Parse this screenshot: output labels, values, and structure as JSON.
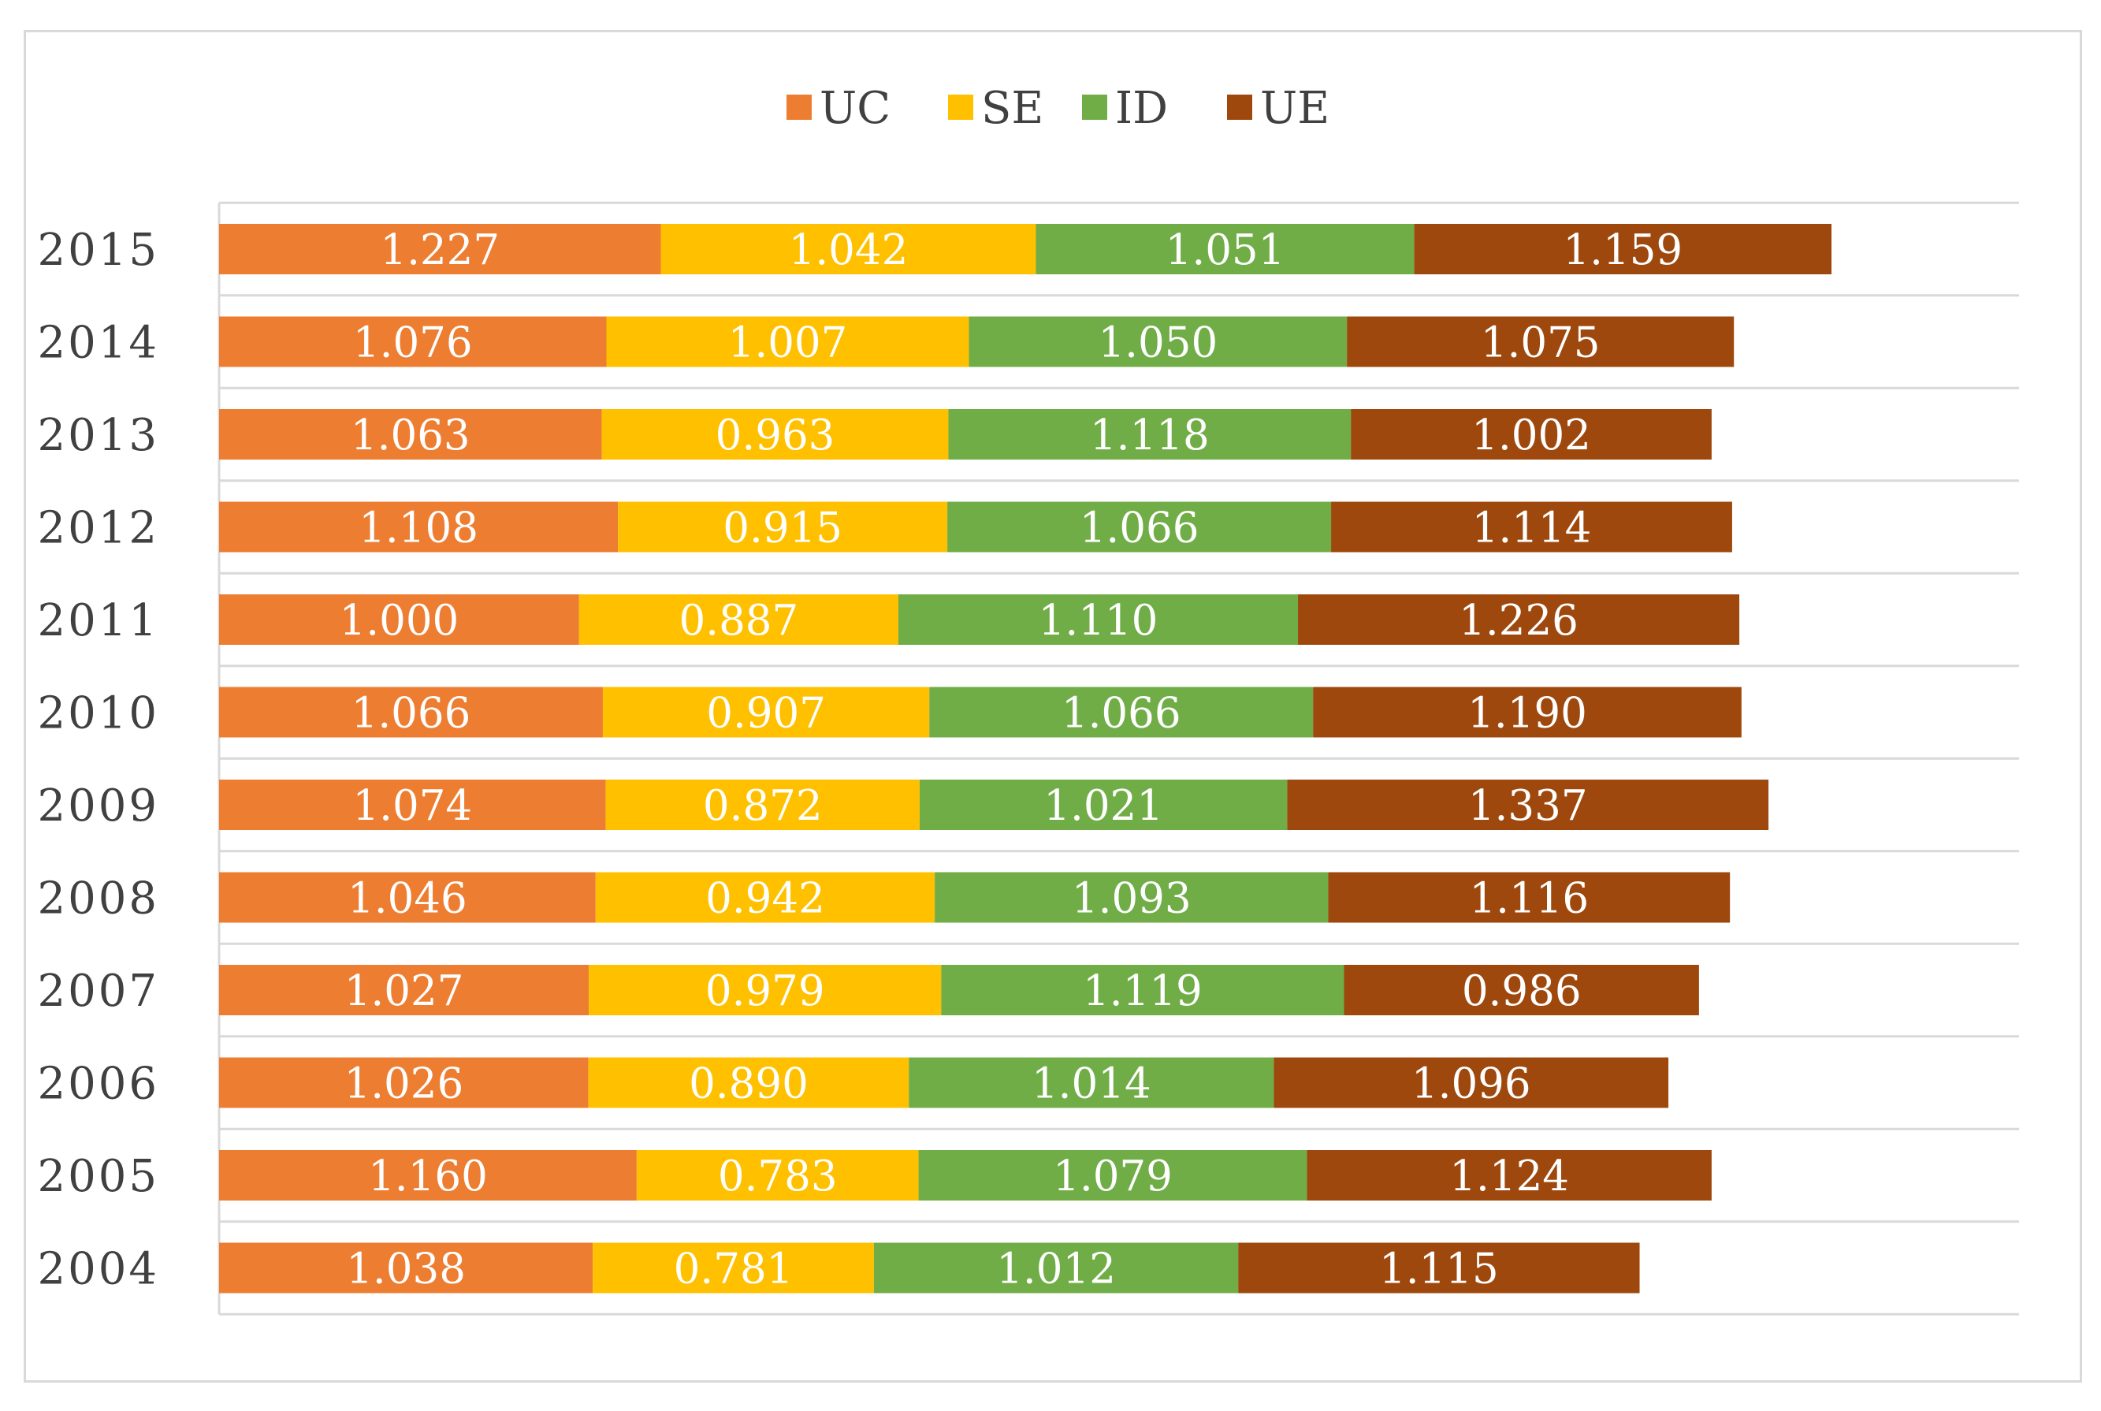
{
  "chart_data": {
    "type": "bar",
    "orientation": "horizontal",
    "stacked": true,
    "title": "",
    "xlabel": "",
    "ylabel": "",
    "legend_position": "top-center",
    "categories": [
      "2015",
      "2014",
      "2013",
      "2012",
      "2011",
      "2010",
      "2009",
      "2008",
      "2007",
      "2006",
      "2005",
      "2004"
    ],
    "series": [
      {
        "name": "UC",
        "color": "#ed7d31",
        "values": [
          1.227,
          1.076,
          1.063,
          1.108,
          1.0,
          1.066,
          1.074,
          1.046,
          1.027,
          1.026,
          1.16,
          1.038
        ]
      },
      {
        "name": "SE",
        "color": "#ffc000",
        "values": [
          1.042,
          1.007,
          0.963,
          0.915,
          0.887,
          0.907,
          0.872,
          0.942,
          0.979,
          0.89,
          0.783,
          0.781
        ]
      },
      {
        "name": "ID",
        "color": "#70ad47",
        "values": [
          1.051,
          1.05,
          1.118,
          1.066,
          1.11,
          1.066,
          1.021,
          1.093,
          1.119,
          1.014,
          1.079,
          1.012
        ]
      },
      {
        "name": "UE",
        "color": "#9e480e",
        "values": [
          1.159,
          1.075,
          1.002,
          1.114,
          1.226,
          1.19,
          1.337,
          1.116,
          0.986,
          1.096,
          1.124,
          1.115
        ]
      }
    ],
    "label_format": "0.000",
    "xlim": [
      0,
      5
    ],
    "grid": true
  }
}
